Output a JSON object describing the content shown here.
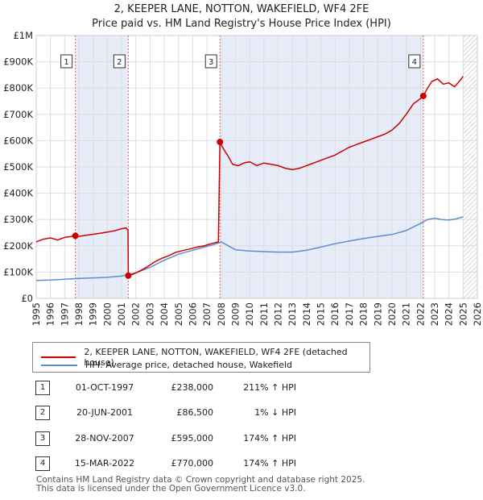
{
  "title_line1": "2, KEEPER LANE, NOTTON, WAKEFIELD, WF4 2FE",
  "title_line2": "Price paid vs. HM Land Registry's House Price Index (HPI)",
  "colors": {
    "property": "#cc0000",
    "hpi": "#5b8ed0",
    "shade": "#e6ecf8",
    "grid": "#dddddd",
    "marker_line": "#e06666"
  },
  "chart_data": {
    "type": "line",
    "title": "Price paid vs. HM Land Registry's House Price Index (HPI)",
    "xlabel": "",
    "ylabel": "",
    "xlim": [
      1995,
      2026
    ],
    "ylim": [
      0,
      1000000
    ],
    "y_ticks": [
      0,
      100000,
      200000,
      300000,
      400000,
      500000,
      600000,
      700000,
      800000,
      900000,
      1000000
    ],
    "y_tick_labels": [
      "£0",
      "£100K",
      "£200K",
      "£300K",
      "£400K",
      "£500K",
      "£600K",
      "£700K",
      "£800K",
      "£900K",
      "£1M"
    ],
    "x_ticks": [
      1995,
      1996,
      1997,
      1998,
      1999,
      2000,
      2001,
      2002,
      2003,
      2004,
      2005,
      2006,
      2007,
      2008,
      2009,
      2010,
      2011,
      2012,
      2013,
      2014,
      2015,
      2016,
      2017,
      2018,
      2019,
      2020,
      2021,
      2022,
      2023,
      2024,
      2025,
      2026
    ],
    "x_tick_labels": [
      "1995",
      "1996",
      "1997",
      "1998",
      "1999",
      "2000",
      "2001",
      "2002",
      "2003",
      "2004",
      "2005",
      "2006",
      "2007",
      "2008",
      "2009",
      "2010",
      "2011",
      "2012",
      "2013",
      "2014",
      "2015",
      "2016",
      "2017",
      "2018",
      "2019",
      "2020",
      "2021",
      "2022",
      "2023",
      "2024",
      "2025",
      "2026"
    ],
    "shaded_ranges": [
      [
        1997.75,
        2001.47
      ],
      [
        2007.91,
        2022.2
      ]
    ],
    "future_hatch_start": 2025.0,
    "series": [
      {
        "name": "2, KEEPER LANE, NOTTON, WAKEFIELD, WF4 2FE (detached house)",
        "x": [
          1995.0,
          1995.5,
          1996.0,
          1996.5,
          1997.0,
          1997.5,
          1997.75,
          1998.0,
          1998.5,
          1999.0,
          1999.5,
          2000.0,
          2000.5,
          2001.0,
          2001.3,
          2001.45,
          2001.47,
          2001.8,
          2002.3,
          2002.8,
          2003.3,
          2003.8,
          2004.3,
          2004.8,
          2005.3,
          2005.8,
          2006.3,
          2006.8,
          2007.3,
          2007.8,
          2007.91,
          2008.2,
          2008.5,
          2008.8,
          2009.2,
          2009.6,
          2010.0,
          2010.5,
          2011.0,
          2011.5,
          2012.0,
          2012.5,
          2013.0,
          2013.5,
          2014.0,
          2014.5,
          2015.0,
          2015.5,
          2016.0,
          2016.5,
          2017.0,
          2017.5,
          2018.0,
          2018.5,
          2019.0,
          2019.5,
          2020.0,
          2020.5,
          2021.0,
          2021.5,
          2022.0,
          2022.2,
          2022.5,
          2022.8,
          2023.2,
          2023.6,
          2024.0,
          2024.4,
          2024.8,
          2025.0
        ],
        "y": [
          215000,
          225000,
          230000,
          222000,
          232000,
          236000,
          238000,
          236000,
          240000,
          244000,
          248000,
          252000,
          257000,
          265000,
          268000,
          260000,
          86500,
          92000,
          105000,
          120000,
          138000,
          152000,
          162000,
          175000,
          182000,
          188000,
          195000,
          200000,
          208000,
          215000,
          595000,
          565000,
          540000,
          510000,
          505000,
          515000,
          520000,
          505000,
          515000,
          510000,
          505000,
          495000,
          490000,
          495000,
          505000,
          515000,
          525000,
          535000,
          545000,
          560000,
          575000,
          585000,
          595000,
          605000,
          615000,
          625000,
          640000,
          665000,
          700000,
          740000,
          760000,
          770000,
          800000,
          825000,
          835000,
          815000,
          820000,
          805000,
          830000,
          845000
        ]
      },
      {
        "name": "HPI: Average price, detached house, Wakefield",
        "x": [
          1995.0,
          1996.0,
          1997.0,
          1998.0,
          1999.0,
          2000.0,
          2001.0,
          2002.0,
          2003.0,
          2004.0,
          2005.0,
          2006.0,
          2007.0,
          2007.5,
          2008.0,
          2008.5,
          2009.0,
          2010.0,
          2011.0,
          2012.0,
          2013.0,
          2014.0,
          2015.0,
          2016.0,
          2017.0,
          2018.0,
          2019.0,
          2020.0,
          2021.0,
          2022.0,
          2022.5,
          2023.0,
          2023.5,
          2024.0,
          2024.5,
          2025.0
        ],
        "y": [
          68000,
          70000,
          73000,
          76000,
          78000,
          80000,
          85000,
          97000,
          118000,
          145000,
          168000,
          183000,
          198000,
          205000,
          215000,
          200000,
          185000,
          180000,
          178000,
          176000,
          176000,
          183000,
          195000,
          208000,
          218000,
          228000,
          236000,
          243000,
          258000,
          285000,
          300000,
          305000,
          300000,
          298000,
          302000,
          310000
        ]
      }
    ],
    "transactions": [
      {
        "num": "1",
        "x": 1997.75,
        "price": 238000
      },
      {
        "num": "2",
        "x": 2001.47,
        "price": 86500
      },
      {
        "num": "3",
        "x": 2007.91,
        "price": 595000
      },
      {
        "num": "4",
        "x": 2022.2,
        "price": 770000
      }
    ]
  },
  "legend": {
    "property_label": "2, KEEPER LANE, NOTTON, WAKEFIELD, WF4 2FE (detached house)",
    "hpi_label": "HPI: Average price, detached house, Wakefield"
  },
  "table": [
    {
      "num": "1",
      "date": "01-OCT-1997",
      "price": "£238,000",
      "hpi": "211% ↑ HPI"
    },
    {
      "num": "2",
      "date": "20-JUN-2001",
      "price": "£86,500",
      "hpi": "1% ↓ HPI"
    },
    {
      "num": "3",
      "date": "28-NOV-2007",
      "price": "£595,000",
      "hpi": "174% ↑ HPI"
    },
    {
      "num": "4",
      "date": "15-MAR-2022",
      "price": "£770,000",
      "hpi": "174% ↑ HPI"
    }
  ],
  "footer": {
    "line1": "Contains HM Land Registry data © Crown copyright and database right 2025.",
    "line2": "This data is licensed under the Open Government Licence v3.0."
  }
}
